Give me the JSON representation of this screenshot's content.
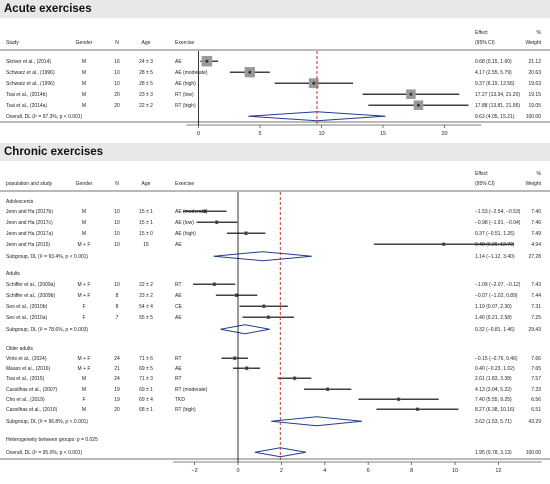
{
  "acute": {
    "title": "Acute exercises",
    "headers": {
      "study": "Study",
      "gender": "Gender",
      "n": "N",
      "age": "Age",
      "exercise": "Exercise",
      "effect_line1": "Effect",
      "effect_line2": "(95% CI)",
      "weight_line1": "%",
      "weight_line2": "Weight"
    }
  },
  "chronic": {
    "title": "Chronic exercises",
    "headers": {
      "study": "population and study",
      "gender": "Gender",
      "n": "N",
      "age": "Age",
      "exercise": "Exercise",
      "effect_line1": "Effect",
      "effect_line2": "(95% CI)",
      "weight_line1": "%",
      "weight_line2": "Weight"
    }
  },
  "colors": {
    "band": "#e8e8e8",
    "marker": "#333333",
    "diamond": "#1f3f8f",
    "refline": "#c0392b",
    "axis": "#555555"
  },
  "chart_data": [
    {
      "type": "forest",
      "title": "Acute exercises",
      "xlim": [
        -1,
        23
      ],
      "xticks": [
        0,
        5,
        10,
        15,
        20
      ],
      "reference_line": 9.63,
      "rows": [
        {
          "study": "Skriver et al., (2014)",
          "gender": "M",
          "n": "16",
          "age": "24 ± 3",
          "exercise": "AE",
          "effect": 0.68,
          "lo": 0.15,
          "hi": 1.6,
          "ci": "0.68 (0.15, 1.60)",
          "weight": "21.12"
        },
        {
          "study": "Schwarz et al., (1996)",
          "gender": "M",
          "n": "10",
          "age": "28 ± 5",
          "exercise": "AE (moderate)",
          "effect": 4.17,
          "lo": 2.55,
          "hi": 5.79,
          "ci": "4.17 (2.55, 5.79)",
          "weight": "20.63"
        },
        {
          "study": "Schwarz et al., (1996)",
          "gender": "M",
          "n": "10",
          "age": "28 ± 5",
          "exercise": "AE (high)",
          "effect": 9.37,
          "lo": 6.19,
          "hi": 12.56,
          "ci": "9.37 (6.19, 12.56)",
          "weight": "19.63"
        },
        {
          "study": "Tsai et al., (2014b)",
          "gender": "M",
          "n": "20",
          "age": "23 ± 3",
          "exercise": "RT (low)",
          "effect": 17.27,
          "lo": 13.34,
          "hi": 21.2,
          "ci": "17.27 (13.34, 21.20)",
          "weight": "19.15"
        },
        {
          "study": "Tsai et al., (2014a)",
          "gender": "M",
          "n": "20",
          "age": "22 ± 2",
          "exercise": "RT (high)",
          "effect": 17.88,
          "lo": 13.81,
          "hi": 21.95,
          "ci": "17.88 (13.81, 21.95)",
          "weight": "19.05"
        }
      ],
      "overall": {
        "label": "Overall, DL (I² = 97.3%, p < 0.001)",
        "effect": 9.63,
        "lo": 4.05,
        "hi": 15.21,
        "ci": "9.63 (4.05, 15.21)",
        "weight": "100.00"
      }
    },
    {
      "type": "forest",
      "title": "Chronic exercises",
      "xlim": [
        -3,
        14
      ],
      "xticks": [
        -2,
        0,
        2,
        4,
        6,
        8,
        10,
        12
      ],
      "reference_line": 1.95,
      "groups": [
        {
          "label": "Adolescents",
          "rows": [
            {
              "study": "Jeon and Ha (2017b)",
              "gender": "M",
              "n": "10",
              "age": "15 ± 1",
              "exercise": "AE (moderate)",
              "effect": -1.53,
              "lo": -2.54,
              "hi": -0.53,
              "ci": "−1.53 (−2.54, −0.53)",
              "weight": "7.40"
            },
            {
              "study": "Jeon and Ha (2017c)",
              "gender": "M",
              "n": "10",
              "age": "15 ± 1",
              "exercise": "AE (low)",
              "effect": -0.98,
              "lo": -1.91,
              "hi": -0.04,
              "ci": "−0.98 (−1.91, −0.04)",
              "weight": "7.46"
            },
            {
              "study": "Jeon and Ha (2017a)",
              "gender": "M",
              "n": "10",
              "age": "15 ± 0",
              "exercise": "AE (high)",
              "effect": 0.37,
              "lo": -0.51,
              "hi": 1.26,
              "ci": "0.37 (−0.51, 1.26)",
              "weight": "7.49"
            },
            {
              "study": "Jeon and Ha (2015)",
              "gender": "M + F",
              "n": "10",
              "age": "15",
              "exercise": "AE",
              "effect": 9.48,
              "lo": 6.26,
              "hi": 12.7,
              "ci": "9.48 (6.26, 12.70)",
              "weight": "4.94"
            }
          ],
          "subgroup": {
            "label": "Subgroup, DL (I² = 93.4%, p < 0.001)",
            "effect": 1.14,
            "lo": -1.12,
            "hi": 3.4,
            "ci": "1.14 (−1.12, 3.40)",
            "weight": "27.28"
          }
        },
        {
          "label": "Adults",
          "rows": [
            {
              "study": "Schiffer et al., (2009a)",
              "gender": "M + F",
              "n": "10",
              "age": "22 ± 2",
              "exercise": "RT",
              "effect": -1.09,
              "lo": -2.07,
              "hi": -0.12,
              "ci": "−1.09 (−2.07, −0.12)",
              "weight": "7.43"
            },
            {
              "study": "Schiffer et al., (2009b)",
              "gender": "M + F",
              "n": "8",
              "age": "23 ± 2",
              "exercise": "AE",
              "effect": -0.07,
              "lo": -1.02,
              "hi": 0.89,
              "ci": "−0.07 (−1.02, 0.89)",
              "weight": "7.44"
            },
            {
              "study": "Seo et al., (2010b)",
              "gender": "F",
              "n": "8",
              "age": "54 ± 4",
              "exercise": "CE",
              "effect": 1.19,
              "lo": 0.07,
              "hi": 2.3,
              "ci": "1.19 (0.07, 2.30)",
              "weight": "7.31"
            },
            {
              "study": "Seo et al., (2010a)",
              "gender": "F",
              "n": "7",
              "age": "55 ± 5",
              "exercise": "AE",
              "effect": 1.4,
              "lo": 0.21,
              "hi": 2.58,
              "ci": "1.40 (0.21, 2.58)",
              "weight": "7.25"
            }
          ],
          "subgroup": {
            "label": "Subgroup, DL (I² = 78.6%, p = 0.003)",
            "effect": 0.32,
            "lo": -0.81,
            "hi": 1.46,
            "ci": "0.32 (−0.81, 1.46)",
            "weight": "29.43"
          }
        },
        {
          "label": "Older adults",
          "rows": [
            {
              "study": "Vints et al., (2024)",
              "gender": "M + F",
              "n": "24",
              "age": "71 ± 6",
              "exercise": "RT",
              "effect": -0.15,
              "lo": -0.76,
              "hi": 0.46,
              "ci": "−0.15 (−0.76, 0.46)",
              "weight": "7.66"
            },
            {
              "study": "Maass et al., (2016)",
              "gender": "M + F",
              "n": "21",
              "age": "69 ± 5",
              "exercise": "AE",
              "effect": 0.4,
              "lo": -0.23,
              "hi": 1.02,
              "ci": "0.40 (−0.23, 1.02)",
              "weight": "7.65"
            },
            {
              "study": "Tsai et al., (2015)",
              "gender": "M",
              "n": "24",
              "age": "71 ± 3",
              "exercise": "RT",
              "effect": 2.61,
              "lo": 1.83,
              "hi": 3.38,
              "ci": "2.61 (1.83, 3.38)",
              "weight": "7.57"
            },
            {
              "study": "Cassilhas et al., (2007)",
              "gender": "M",
              "n": "19",
              "age": "69 ± 1",
              "exercise": "RT (moderate)",
              "effect": 4.13,
              "lo": 3.04,
              "hi": 5.22,
              "ci": "4.13 (3.04, 5.22)",
              "weight": "7.33"
            },
            {
              "study": "Cho et al., (2019)",
              "gender": "F",
              "n": "19",
              "age": "69 ± 4",
              "exercise": "TKD",
              "effect": 7.4,
              "lo": 5.55,
              "hi": 9.25,
              "ci": "7.40 (5.55, 9.25)",
              "weight": "6.56"
            },
            {
              "study": "Cassilhas et al., (2010)",
              "gender": "M",
              "n": "20",
              "age": "68 ± 1",
              "exercise": "RT (high)",
              "effect": 8.27,
              "lo": 6.38,
              "hi": 10.16,
              "ci": "8.27 (6.38, 10.16)",
              "weight": "6.51"
            }
          ],
          "subgroup": {
            "label": "Subgroup, DL (I² = 96.8%, p < 0.001)",
            "effect": 3.62,
            "lo": 1.53,
            "hi": 5.71,
            "ci": "3.62 (1.53, 5.71)",
            "weight": "43.29"
          }
        }
      ],
      "heterogeneity": "Heterogeneity between groups: p = 0.025",
      "overall": {
        "label": "Overall, DL (I² = 95.0%, p < 0.001)",
        "effect": 1.95,
        "lo": 0.78,
        "hi": 3.13,
        "ci": "1.95 (0.78, 3.13)",
        "weight": "100.00"
      }
    }
  ]
}
